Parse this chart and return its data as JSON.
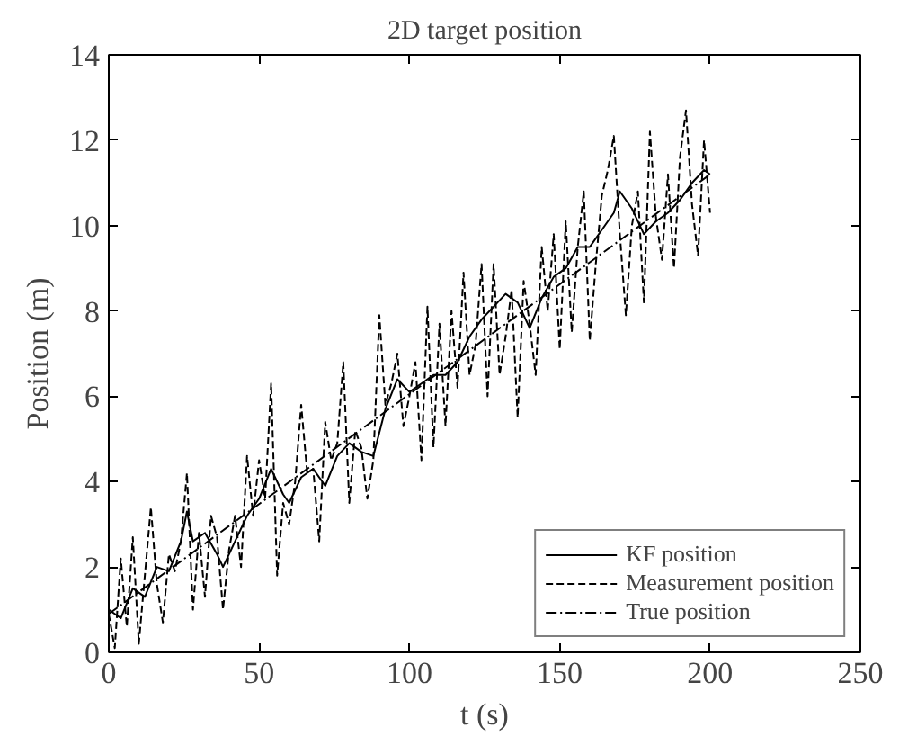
{
  "chart_data": {
    "type": "line",
    "title": "2D target position",
    "xlabel": "t (s)",
    "ylabel": "Position (m)",
    "xlim": [
      0,
      250
    ],
    "xticks": [
      0,
      50,
      100,
      150,
      200,
      250
    ],
    "ylim": [
      0,
      14
    ],
    "yticks": [
      0,
      2,
      4,
      6,
      8,
      10,
      12,
      14
    ],
    "grid": false,
    "legend": "bottom right",
    "series": [
      {
        "name": "KF position",
        "color": "#000000",
        "line_style": "solid",
        "x": [
          0,
          4,
          8,
          12,
          16,
          20,
          24,
          26,
          28,
          32,
          36,
          38,
          42,
          46,
          50,
          54,
          58,
          60,
          64,
          68,
          72,
          76,
          80,
          84,
          88,
          92,
          96,
          100,
          104,
          108,
          112,
          116,
          120,
          124,
          128,
          132,
          136,
          140,
          144,
          148,
          152,
          156,
          160,
          164,
          168,
          170,
          174,
          178,
          182,
          186,
          190,
          194,
          198,
          200
        ],
        "values": [
          1.0,
          0.8,
          1.5,
          1.3,
          2.0,
          1.9,
          2.6,
          3.3,
          2.6,
          2.8,
          2.3,
          2.0,
          2.6,
          3.2,
          3.6,
          4.3,
          3.7,
          3.5,
          4.1,
          4.3,
          3.9,
          4.6,
          4.9,
          4.7,
          4.6,
          5.7,
          6.4,
          6.1,
          6.3,
          6.5,
          6.5,
          6.8,
          7.4,
          7.8,
          8.1,
          8.4,
          8.2,
          7.6,
          8.3,
          8.8,
          9.0,
          9.5,
          9.5,
          9.9,
          10.3,
          10.8,
          10.4,
          9.8,
          10.1,
          10.3,
          10.6,
          11.0,
          11.3,
          11.2
        ]
      },
      {
        "name": "Measurement position",
        "color": "#000000",
        "line_style": "dashed",
        "x": [
          0,
          2,
          4,
          6,
          8,
          10,
          12,
          14,
          16,
          18,
          20,
          22,
          24,
          26,
          28,
          30,
          32,
          34,
          36,
          38,
          40,
          42,
          44,
          46,
          48,
          50,
          52,
          54,
          56,
          58,
          60,
          62,
          64,
          66,
          68,
          70,
          72,
          74,
          76,
          78,
          80,
          82,
          84,
          86,
          88,
          90,
          92,
          94,
          96,
          98,
          100,
          102,
          104,
          106,
          108,
          110,
          112,
          114,
          116,
          118,
          120,
          122,
          124,
          126,
          128,
          130,
          132,
          134,
          136,
          138,
          140,
          142,
          144,
          146,
          148,
          150,
          152,
          154,
          156,
          158,
          160,
          162,
          164,
          166,
          168,
          170,
          172,
          174,
          176,
          178,
          180,
          182,
          184,
          186,
          188,
          190,
          192,
          194,
          196,
          198,
          200
        ],
        "values": [
          0.9,
          0.1,
          2.2,
          0.6,
          2.7,
          0.2,
          1.8,
          3.4,
          1.6,
          0.7,
          2.3,
          1.9,
          2.6,
          4.2,
          1.0,
          2.8,
          1.3,
          3.2,
          2.7,
          1.0,
          2.4,
          3.2,
          2.0,
          4.6,
          3.2,
          4.5,
          3.6,
          6.3,
          1.8,
          3.5,
          3.0,
          4.0,
          5.8,
          4.2,
          4.3,
          2.6,
          5.4,
          4.5,
          4.9,
          6.8,
          3.5,
          5.2,
          4.8,
          3.6,
          4.5,
          7.9,
          5.8,
          6.3,
          7.0,
          5.3,
          6.0,
          6.8,
          4.5,
          8.1,
          4.8,
          7.7,
          5.3,
          8.0,
          6.2,
          8.9,
          6.5,
          7.2,
          9.1,
          6.0,
          9.1,
          6.5,
          7.4,
          8.5,
          5.5,
          8.7,
          7.7,
          6.5,
          9.5,
          8.0,
          9.8,
          7.1,
          10.1,
          7.5,
          9.5,
          10.8,
          7.3,
          9.1,
          10.7,
          11.3,
          12.1,
          9.8,
          7.9,
          10.0,
          10.8,
          8.2,
          12.2,
          10.2,
          9.2,
          11.2,
          9.0,
          11.6,
          12.7,
          10.5,
          9.3,
          12.0,
          10.3
        ]
      },
      {
        "name": "True position",
        "color": "#000000",
        "line_style": "dashdot",
        "x": [
          0,
          200
        ],
        "values": [
          0.9,
          11.2
        ]
      }
    ]
  }
}
